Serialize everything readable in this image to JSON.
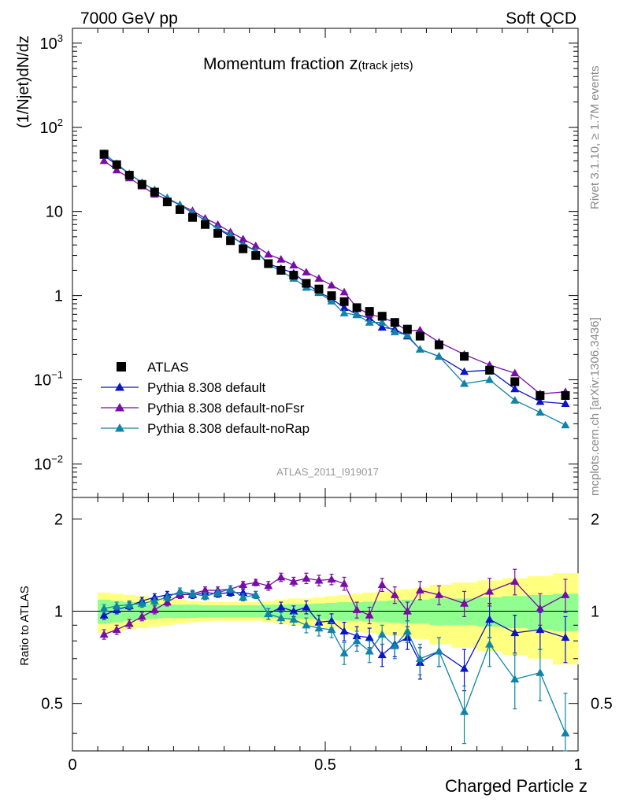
{
  "header": {
    "left": "7000 GeV pp",
    "right": "Soft QCD"
  },
  "main_title": {
    "prefix": "Momentum fraction ",
    "var": "z",
    "sub": "(track jets)"
  },
  "side_labels": {
    "rivet": "Rivet 3.1.10, ≥ 1.7M events",
    "mcplots": "mcplots.cern.ch [arXiv:1306.3436]"
  },
  "analysis_id": "ATLAS_2011_I919017",
  "colors": {
    "data": "#000000",
    "default": "#0a14c8",
    "noFsr": "#7a0ba6",
    "noRap": "#0f84a8",
    "band_outer": "#ffff80",
    "band_inner": "#90ff90"
  },
  "chart_data": [
    {
      "type": "scatter",
      "panel": "main",
      "title": "Momentum fraction z(track jets)",
      "ylabel": "(1/Njet)dN/dz",
      "xlim": [
        0,
        1
      ],
      "ylim": [
        0.004,
        1500
      ],
      "yscale": "log",
      "yticks": [
        {
          "value": 0.01,
          "base": "10",
          "exp": "−2"
        },
        {
          "value": 0.1,
          "base": "10",
          "exp": "−1"
        },
        {
          "value": 1,
          "base": "1",
          "exp": ""
        },
        {
          "value": 10,
          "base": "10",
          "exp": ""
        },
        {
          "value": 100,
          "base": "10",
          "exp": "2"
        },
        {
          "value": 1000,
          "base": "10",
          "exp": "3"
        }
      ],
      "legend_position": "lower-left",
      "x": [
        0.0625,
        0.0875,
        0.1125,
        0.1375,
        0.1625,
        0.1875,
        0.2125,
        0.2375,
        0.2625,
        0.2875,
        0.3125,
        0.3375,
        0.3625,
        0.3875,
        0.4125,
        0.4375,
        0.4625,
        0.4875,
        0.5125,
        0.5375,
        0.5625,
        0.5875,
        0.6125,
        0.6375,
        0.6625,
        0.6875,
        0.725,
        0.775,
        0.825,
        0.875,
        0.925,
        0.975
      ],
      "series": [
        {
          "name": "ATLAS",
          "style": "data",
          "color": "#000000",
          "values": [
            48,
            36,
            27,
            21,
            17,
            13,
            10.5,
            8.5,
            7.0,
            5.5,
            4.5,
            3.6,
            3.0,
            2.4,
            2.0,
            1.75,
            1.4,
            1.2,
            1.0,
            0.85,
            0.72,
            0.65,
            0.57,
            0.48,
            0.4,
            0.33,
            0.26,
            0.19,
            0.13,
            0.095,
            0.065,
            0.065
          ]
        },
        {
          "name": "Pythia 8.308 default",
          "style": "line",
          "color": "#0a14c8",
          "values": [
            46,
            36,
            28,
            22,
            18,
            14.5,
            12,
            9.6,
            7.9,
            6.2,
            5.1,
            4.1,
            3.4,
            2.4,
            2.1,
            1.85,
            1.4,
            1.1,
            0.92,
            0.72,
            0.6,
            0.54,
            0.42,
            0.4,
            0.33,
            0.23,
            0.19,
            0.125,
            0.13,
            0.078,
            0.055,
            0.052
          ]
        },
        {
          "name": "Pythia 8.308 default-noFsr",
          "style": "line",
          "color": "#7a0ba6",
          "values": [
            40,
            31,
            25,
            20,
            16,
            14,
            12,
            10.2,
            8.3,
            7.0,
            5.7,
            4.7,
            3.9,
            3.1,
            2.7,
            2.3,
            1.9,
            1.6,
            1.33,
            1.1,
            0.72,
            0.6,
            0.55,
            0.48,
            0.38,
            0.39,
            0.28,
            0.2,
            0.15,
            0.12,
            0.068,
            0.072
          ]
        },
        {
          "name": "Pythia 8.308 default-noRap",
          "style": "line",
          "color": "#0f84a8",
          "values": [
            49,
            37,
            28,
            22,
            18,
            14.5,
            12,
            9.7,
            7.8,
            6.3,
            5.3,
            4.0,
            3.4,
            2.35,
            1.95,
            1.6,
            1.25,
            1.08,
            0.86,
            0.62,
            0.59,
            0.48,
            0.48,
            0.37,
            0.34,
            0.23,
            0.19,
            0.09,
            0.1,
            0.057,
            0.041,
            0.029
          ]
        }
      ]
    },
    {
      "type": "scatter",
      "panel": "ratio",
      "ylabel": "Ratio to ATLAS",
      "xlabel": "Charged Particle z",
      "xlim": [
        0,
        1
      ],
      "ylim": [
        0.35,
        2.35
      ],
      "yscale": "log",
      "yticks": [
        0.5,
        1,
        2
      ],
      "xticks": [
        0,
        0.5,
        1
      ],
      "band_outer": [
        0.15,
        0.14,
        0.13,
        0.12,
        0.11,
        0.1,
        0.09,
        0.08,
        0.075,
        0.07,
        0.07,
        0.07,
        0.07,
        0.08,
        0.09,
        0.1,
        0.1,
        0.11,
        0.12,
        0.13,
        0.14,
        0.15,
        0.16,
        0.17,
        0.18,
        0.19,
        0.22,
        0.24,
        0.26,
        0.28,
        0.3,
        0.33
      ],
      "band_inner": [
        0.09,
        0.08,
        0.07,
        0.06,
        0.055,
        0.05,
        0.05,
        0.05,
        0.045,
        0.045,
        0.045,
        0.045,
        0.045,
        0.05,
        0.05,
        0.055,
        0.055,
        0.06,
        0.065,
        0.07,
        0.07,
        0.075,
        0.08,
        0.085,
        0.09,
        0.09,
        0.1,
        0.1,
        0.11,
        0.12,
        0.13,
        0.14
      ],
      "series": [
        {
          "name": "Pythia 8.308 default",
          "color": "#0a14c8",
          "values": [
            0.97,
            1.01,
            1.04,
            1.08,
            1.11,
            1.13,
            1.14,
            1.13,
            1.15,
            1.14,
            1.15,
            1.15,
            1.13,
            0.98,
            1.03,
            1.0,
            1.03,
            0.92,
            0.93,
            0.86,
            0.83,
            0.82,
            0.72,
            0.78,
            0.82,
            0.68,
            0.74,
            0.65,
            0.94,
            0.85,
            0.87,
            0.82
          ],
          "errors": [
            0.03,
            0.03,
            0.03,
            0.03,
            0.03,
            0.03,
            0.03,
            0.03,
            0.03,
            0.03,
            0.03,
            0.03,
            0.03,
            0.04,
            0.04,
            0.04,
            0.05,
            0.05,
            0.05,
            0.06,
            0.06,
            0.06,
            0.06,
            0.07,
            0.07,
            0.08,
            0.08,
            0.1,
            0.12,
            0.12,
            0.12,
            0.14
          ]
        },
        {
          "name": "Pythia 8.308 default-noFsr",
          "color": "#7a0ba6",
          "values": [
            0.84,
            0.87,
            0.91,
            0.96,
            1.01,
            1.07,
            1.13,
            1.14,
            1.17,
            1.17,
            1.18,
            1.22,
            1.24,
            1.21,
            1.29,
            1.25,
            1.28,
            1.26,
            1.27,
            1.23,
            1.01,
            0.97,
            1.22,
            1.13,
            1.0,
            1.17,
            1.13,
            1.06,
            1.16,
            1.25,
            1.02,
            1.13
          ],
          "errors": [
            0.03,
            0.03,
            0.03,
            0.03,
            0.03,
            0.03,
            0.03,
            0.03,
            0.03,
            0.03,
            0.03,
            0.03,
            0.03,
            0.04,
            0.04,
            0.04,
            0.05,
            0.05,
            0.05,
            0.06,
            0.06,
            0.06,
            0.06,
            0.07,
            0.07,
            0.08,
            0.08,
            0.1,
            0.12,
            0.12,
            0.12,
            0.14
          ]
        },
        {
          "name": "Pythia 8.308 default-noRap",
          "color": "#0f84a8",
          "values": [
            1.02,
            1.04,
            1.05,
            1.06,
            1.08,
            1.11,
            1.16,
            1.14,
            1.12,
            1.15,
            1.18,
            1.11,
            1.13,
            0.98,
            0.95,
            0.94,
            0.9,
            0.88,
            0.87,
            0.73,
            0.8,
            0.74,
            0.84,
            0.77,
            0.86,
            0.7,
            0.74,
            0.47,
            0.78,
            0.6,
            0.63,
            0.4
          ],
          "errors": [
            0.03,
            0.03,
            0.03,
            0.03,
            0.03,
            0.03,
            0.03,
            0.03,
            0.03,
            0.03,
            0.03,
            0.03,
            0.03,
            0.04,
            0.04,
            0.04,
            0.05,
            0.05,
            0.05,
            0.06,
            0.06,
            0.06,
            0.06,
            0.07,
            0.07,
            0.08,
            0.08,
            0.1,
            0.12,
            0.12,
            0.12,
            0.14
          ]
        }
      ]
    }
  ]
}
